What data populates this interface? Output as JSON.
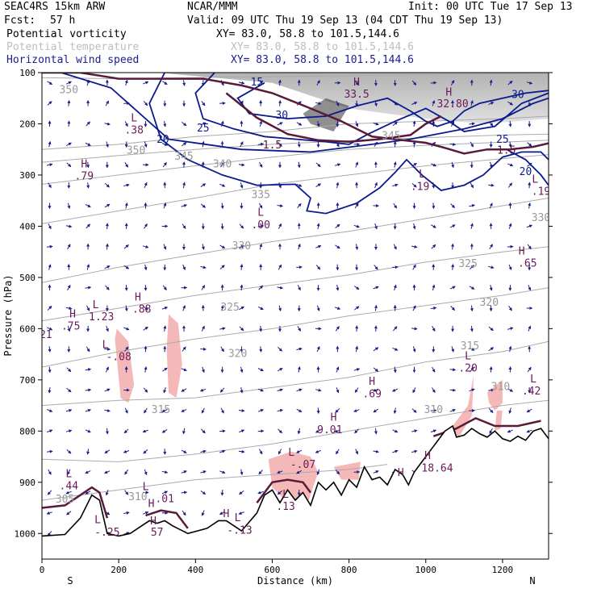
{
  "header": {
    "model": "SEAC4RS 15km ARW",
    "center": "NCAR/MMM",
    "init": "Init: 00 UTC Tue 17 Sep 13",
    "fcst_label": "Fcst:",
    "fcst_value": "57 h",
    "valid": "Valid: 09 UTC Thu 19 Sep 13 (04 CDT Thu 19 Sep 13)"
  },
  "legend": [
    {
      "name": "Potential vorticity",
      "xy": "XY=  83.0, 58.8 to 101.5,144.6",
      "color": "#000000"
    },
    {
      "name": "Potential temperature",
      "xy": "XY=  83.0, 58.8 to 101.5,144.6",
      "color": "#bdbdbd"
    },
    {
      "name": "Horizontal wind speed",
      "xy": "XY=  83.0, 58.8 to 101.5,144.6",
      "color": "#1c1c8c"
    }
  ],
  "colors": {
    "theta": "#aaaaaa",
    "wind": "#0b1a8c",
    "pv_line": "#5a1a3a",
    "pv_fill": "#f5b8b8",
    "terrain": "#000000",
    "vectors": "#1c1c8c"
  },
  "chart_data": {
    "type": "cross-section",
    "xlabel": "Distance (km)",
    "ylabel": "Pressure (hPa)",
    "xlim": [
      0,
      1320
    ],
    "ylim": [
      1050,
      100
    ],
    "x_ticks": [
      0,
      200,
      400,
      600,
      800,
      1000,
      1200
    ],
    "y_ticks": [
      100,
      200,
      300,
      400,
      500,
      600,
      700,
      800,
      900,
      1000
    ],
    "x_end_labels": {
      "left": "S",
      "right": "N"
    },
    "terrain": {
      "x": [
        0,
        60,
        100,
        130,
        150,
        170,
        200,
        230,
        260,
        280,
        300,
        320,
        340,
        380,
        430,
        460,
        480,
        500,
        520,
        560,
        580,
        600,
        620,
        640,
        660,
        680,
        700,
        720,
        740,
        760,
        780,
        800,
        820,
        840,
        860,
        880,
        900,
        920,
        940,
        955,
        970,
        990,
        1010,
        1030,
        1050,
        1070,
        1080,
        1100,
        1120,
        1140,
        1160,
        1180,
        1200,
        1220,
        1240,
        1260,
        1280,
        1300,
        1320
      ],
      "p": [
        1005,
        1002,
        970,
        925,
        935,
        1000,
        1005,
        1000,
        985,
        975,
        980,
        975,
        985,
        1000,
        990,
        975,
        975,
        985,
        995,
        960,
        925,
        915,
        940,
        915,
        935,
        920,
        945,
        900,
        915,
        900,
        925,
        895,
        910,
        870,
        895,
        890,
        905,
        875,
        885,
        905,
        880,
        860,
        840,
        820,
        800,
        790,
        812,
        808,
        795,
        805,
        812,
        800,
        815,
        820,
        810,
        818,
        800,
        795,
        815
      ]
    },
    "theta_contours": [
      {
        "value": 350,
        "x": [
          0,
          200,
          400,
          600,
          800,
          1000,
          1200,
          1320
        ],
        "p": [
          110,
          112,
          110,
          108,
          106,
          104,
          102,
          100
        ]
      },
      {
        "value": 350,
        "x": [
          0,
          200,
          400,
          600,
          800,
          1000,
          1200,
          1320
        ],
        "p": [
          250,
          240,
          225,
          215,
          200,
          195,
          190,
          185
        ]
      },
      {
        "value": 345,
        "x": [
          0,
          200,
          400,
          600,
          800,
          1000,
          1200,
          1320
        ],
        "p": [
          275,
          262,
          250,
          240,
          233,
          227,
          222,
          220
        ]
      },
      {
        "value": 340,
        "x": [
          0,
          200,
          400,
          600,
          800,
          1000,
          1200,
          1320
        ],
        "p": [
          318,
          300,
          282,
          265,
          250,
          242,
          236,
          232
        ]
      },
      {
        "value": 335,
        "x": [
          0,
          200,
          400,
          600,
          800,
          1000,
          1200,
          1320
        ],
        "p": [
          395,
          370,
          345,
          318,
          300,
          282,
          268,
          260
        ]
      },
      {
        "value": 330,
        "x": [
          0,
          200,
          400,
          600,
          800,
          1000,
          1200,
          1320
        ],
        "p": [
          510,
          480,
          455,
          430,
          410,
          385,
          360,
          345
        ]
      },
      {
        "value": 325,
        "x": [
          0,
          200,
          400,
          600,
          800,
          1000,
          1200,
          1320
        ],
        "p": [
          585,
          560,
          535,
          515,
          495,
          470,
          450,
          440
        ]
      },
      {
        "value": 320,
        "x": [
          0,
          200,
          400,
          600,
          800,
          1000,
          1200,
          1320
        ],
        "p": [
          675,
          645,
          620,
          600,
          575,
          555,
          535,
          520
        ]
      },
      {
        "value": 315,
        "x": [
          0,
          200,
          400,
          600,
          800,
          1000,
          1200,
          1320
        ],
        "p": [
          750,
          740,
          735,
          715,
          695,
          665,
          645,
          625
        ]
      },
      {
        "value": 310,
        "x": [
          0,
          200,
          400,
          600,
          800,
          1000,
          1200,
          1320
        ],
        "p": [
          855,
          860,
          845,
          825,
          800,
          775,
          750,
          740
        ]
      },
      {
        "value": 305,
        "x": [
          0,
          200,
          400,
          600,
          800,
          900
        ],
        "p": [
          935,
          915,
          895,
          885,
          875,
          865
        ]
      }
    ],
    "theta_labels": [
      {
        "text": "350",
        "x": 70,
        "p": 140
      },
      {
        "text": "350",
        "x": 245,
        "p": 258
      },
      {
        "text": "345",
        "x": 370,
        "p": 270
      },
      {
        "text": "340",
        "x": 470,
        "p": 285
      },
      {
        "text": "335",
        "x": 570,
        "p": 345
      },
      {
        "text": "330",
        "x": 520,
        "p": 445
      },
      {
        "text": "325",
        "x": 490,
        "p": 565
      },
      {
        "text": "320",
        "x": 510,
        "p": 655
      },
      {
        "text": "315",
        "x": 310,
        "p": 765
      },
      {
        "text": "310",
        "x": 250,
        "p": 935
      },
      {
        "text": "305",
        "x": 60,
        "p": 940
      },
      {
        "text": "325",
        "x": 1110,
        "p": 480
      },
      {
        "text": "320",
        "x": 1165,
        "p": 555
      },
      {
        "text": "315",
        "x": 1115,
        "p": 640
      },
      {
        "text": "310",
        "x": 1020,
        "p": 765
      },
      {
        "text": "310",
        "x": 1195,
        "p": 720
      },
      {
        "text": "330",
        "x": 1300,
        "p": 390
      },
      {
        "text": "345",
        "x": 910,
        "p": 230
      }
    ],
    "wind_contours": [
      {
        "value": 20,
        "x": [
          50,
          180,
          330,
          520,
          700,
          860,
          960,
          1100,
          1200,
          1280,
          1320
        ],
        "p": [
          100,
          130,
          230,
          250,
          255,
          240,
          230,
          210,
          190,
          160,
          150
        ]
      },
      {
        "value": 20,
        "x": [
          1210,
          1260,
          1300,
          1320
        ],
        "p": [
          250,
          270,
          300,
          320
        ]
      },
      {
        "value": 20,
        "x": [
          320,
          280,
          310,
          380,
          470,
          560,
          660,
          700,
          690,
          740,
          820,
          880,
          920,
          950,
          990,
          1040,
          1100,
          1150,
          1200,
          1250,
          1300,
          1320
        ],
        "p": [
          100,
          160,
          230,
          270,
          300,
          320,
          318,
          345,
          370,
          375,
          355,
          325,
          295,
          270,
          300,
          330,
          320,
          300,
          265,
          255,
          255,
          270
        ]
      },
      {
        "value": 25,
        "x": [
          450,
          400,
          420,
          500,
          580,
          660,
          740,
          800,
          850,
          920,
          1000,
          1060,
          1100,
          1180,
          1250,
          1320
        ],
        "p": [
          100,
          140,
          190,
          210,
          225,
          230,
          235,
          240,
          220,
          195,
          170,
          195,
          215,
          205,
          160,
          140
        ]
      },
      {
        "value": 30,
        "x": [
          580,
          510,
          540,
          640,
          740,
          820,
          900,
          960,
          1000,
          1030,
          1070,
          1100,
          1140,
          1200,
          1260,
          1320
        ],
        "p": [
          120,
          150,
          180,
          190,
          185,
          165,
          150,
          175,
          195,
          205,
          195,
          175,
          160,
          150,
          140,
          135
        ]
      }
    ],
    "wind_labels": [
      {
        "text": "15",
        "x": 560,
        "p": 125
      },
      {
        "text": "20",
        "x": 315,
        "p": 237
      },
      {
        "text": "25",
        "x": 420,
        "p": 215
      },
      {
        "text": "30",
        "x": 625,
        "p": 190
      },
      {
        "text": "30",
        "x": 1240,
        "p": 150
      },
      {
        "text": "25",
        "x": 1200,
        "p": 237
      },
      {
        "text": "20",
        "x": 1260,
        "p": 300
      }
    ],
    "pv_bands": [
      {
        "x": [
          0,
          100,
          200,
          320,
          420,
          520,
          600,
          700,
          780,
          860,
          940,
          1000,
          1050,
          1100,
          1160,
          1220,
          1280,
          1320
        ],
        "p": [
          100,
          100,
          112,
          112,
          112,
          125,
          140,
          170,
          195,
          225,
          232,
          237,
          247,
          258,
          250,
          250,
          245,
          238
        ]
      },
      {
        "x": [
          480,
          560,
          640,
          720,
          800,
          880,
          960,
          1000,
          1040
        ],
        "p": [
          140,
          188,
          220,
          232,
          235,
          230,
          222,
          200,
          185
        ]
      }
    ],
    "pv_labels": [
      {
        "text": "1.5",
        "x": 600,
        "p": 248
      },
      {
        "text": "1.5",
        "x": 1210,
        "p": 258
      }
    ],
    "pv_fills": [
      {
        "x": [
          195,
          225,
          240,
          225,
          205,
          190
        ],
        "p": [
          600,
          625,
          710,
          745,
          735,
          620
        ]
      },
      {
        "x": [
          330,
          355,
          365,
          350,
          330,
          325
        ],
        "p": [
          572,
          590,
          670,
          735,
          725,
          640
        ]
      },
      {
        "x": [
          590,
          650,
          700,
          720,
          695,
          640,
          600
        ],
        "p": [
          855,
          840,
          850,
          880,
          935,
          940,
          910
        ]
      },
      {
        "x": [
          760,
          830,
          825,
          780
        ],
        "p": [
          870,
          860,
          895,
          895
        ]
      },
      {
        "x": [
          1060,
          1110,
          1125,
          1120,
          1080,
          1060
        ],
        "p": [
          800,
          750,
          690,
          770,
          820,
          850
        ]
      },
      {
        "x": [
          1160,
          1200,
          1200,
          1180,
          1165
        ],
        "p": [
          725,
          700,
          745,
          760,
          745
        ]
      },
      {
        "x": [
          1185,
          1200,
          1195,
          1180
        ],
        "p": [
          760,
          760,
          795,
          800
        ]
      }
    ],
    "pv_surface": [
      {
        "x": [
          0,
          60,
          100,
          130,
          150,
          170
        ],
        "p": [
          950,
          945,
          925,
          910,
          920,
          970
        ]
      },
      {
        "x": [
          270,
          310,
          350,
          380
        ],
        "p": [
          965,
          955,
          960,
          990
        ]
      },
      {
        "x": [
          560,
          600,
          640,
          680,
          700
        ],
        "p": [
          940,
          900,
          895,
          900,
          920
        ]
      },
      {
        "x": [
          1020,
          1080,
          1130,
          1180,
          1240,
          1300
        ],
        "p": [
          810,
          795,
          775,
          790,
          790,
          780
        ]
      }
    ],
    "max_min_labels": [
      {
        "text": "L",
        "x": 240,
        "p": 195
      },
      {
        "text": ".38",
        "x": 240,
        "p": 219
      },
      {
        "text": "H",
        "x": 110,
        "p": 285
      },
      {
        "text": ".79",
        "x": 110,
        "p": 309
      },
      {
        "text": "L",
        "x": 570,
        "p": 380
      },
      {
        "text": ".00",
        "x": 570,
        "p": 404
      },
      {
        "text": "H",
        "x": 820,
        "p": 125
      },
      {
        "text": "33.5",
        "x": 820,
        "p": 149
      },
      {
        "text": "H",
        "x": 1060,
        "p": 145
      },
      {
        "text": "32.80",
        "x": 1070,
        "p": 168
      },
      {
        "text": "L",
        "x": 990,
        "p": 305
      },
      {
        "text": ".19",
        "x": 985,
        "p": 329
      },
      {
        "text": "L",
        "x": 1285,
        "p": 315
      },
      {
        "text": ".19",
        "x": 1300,
        "p": 339
      },
      {
        "text": "H",
        "x": 1250,
        "p": 455
      },
      {
        "text": ".65",
        "x": 1265,
        "p": 479
      },
      {
        "text": "H",
        "x": 80,
        "p": 578
      },
      {
        "text": ".75",
        "x": 75,
        "p": 602
      },
      {
        "text": "L",
        "x": 140,
        "p": 560
      },
      {
        "text": "1.23",
        "x": 155,
        "p": 584
      },
      {
        "text": "H",
        "x": 250,
        "p": 545
      },
      {
        "text": ".88",
        "x": 260,
        "p": 569
      },
      {
        "text": "L",
        "x": 165,
        "p": 638
      },
      {
        "text": "-.08",
        "x": 200,
        "p": 662
      },
      {
        "text": "L",
        "x": 1110,
        "p": 660
      },
      {
        "text": ".20",
        "x": 1110,
        "p": 684
      },
      {
        "text": "L",
        "x": 1280,
        "p": 705
      },
      {
        "text": ".42",
        "x": 1275,
        "p": 729
      },
      {
        "text": "H",
        "x": 860,
        "p": 710
      },
      {
        "text": ".69",
        "x": 860,
        "p": 734
      },
      {
        "text": "H",
        "x": 760,
        "p": 780
      },
      {
        "text": "9.01",
        "x": 750,
        "p": 804
      },
      {
        "text": "L",
        "x": 650,
        "p": 848
      },
      {
        "text": "-.07",
        "x": 680,
        "p": 872
      },
      {
        "text": "H",
        "x": 1005,
        "p": 855
      },
      {
        "text": "18.64",
        "x": 1030,
        "p": 879
      },
      {
        "text": "H",
        "x": 935,
        "p": 888
      },
      {
        "text": "L",
        "x": 70,
        "p": 890
      },
      {
        "text": ".44",
        "x": 70,
        "p": 914
      },
      {
        "text": "L",
        "x": 270,
        "p": 915
      },
      {
        "text": ".01",
        "x": 320,
        "p": 939
      },
      {
        "text": "H",
        "x": 285,
        "p": 948
      },
      {
        "text": "L",
        "x": 635,
        "p": 930
      },
      {
        "text": ".13",
        "x": 635,
        "p": 954
      },
      {
        "text": "L",
        "x": 145,
        "p": 980
      },
      {
        "text": "-.25",
        "x": 170,
        "p": 1004
      },
      {
        "text": "H",
        "x": 290,
        "p": 982
      },
      {
        "text": "57",
        "x": 300,
        "p": 1004
      },
      {
        "text": "H",
        "x": 480,
        "p": 968
      },
      {
        "text": "L",
        "x": 510,
        "p": 976
      },
      {
        "text": "-.13",
        "x": 515,
        "p": 1000
      },
      {
        "text": "21",
        "x": 10,
        "p": 618
      }
    ],
    "vectors": {
      "x_step_km": 50,
      "p_step_hPa": 40,
      "x_start": 20,
      "p_start": 120
    }
  }
}
